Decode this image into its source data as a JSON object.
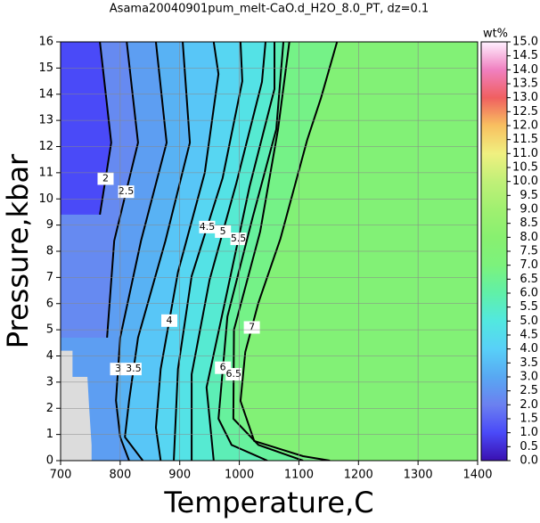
{
  "chart_data": {
    "type": "contour",
    "title": "Asama20040901pum_melt-CaO.d_H2O_8.0_PT, dz=0.1",
    "x_label": "Temperature,C",
    "y_label": "Pressure,kbar",
    "xlim": [
      700,
      1400
    ],
    "ylim": [
      0,
      16
    ],
    "xticks": [
      700,
      800,
      900,
      1000,
      1100,
      1200,
      1300,
      1400
    ],
    "yticks": [
      0,
      1,
      2,
      3,
      4,
      5,
      6,
      7,
      8,
      9,
      10,
      11,
      12,
      13,
      14,
      15,
      16
    ],
    "grid": true,
    "colorbar": {
      "label": "wt%",
      "lim": [
        0,
        15
      ],
      "colors": [
        "#3a10b0",
        "#4a4af8",
        "#6b80f0",
        "#58a8f2",
        "#58d0f8",
        "#52e8e0",
        "#60f0a8",
        "#7cf27c",
        "#88f070",
        "#a0f070",
        "#c0f078",
        "#f0f080",
        "#f8c060",
        "#f06060",
        "#f080c0",
        "#fff0ff"
      ],
      "ticks": [
        {
          "value": 0,
          "label": "0.0"
        },
        {
          "value": 0.5,
          "label": "0.5"
        },
        {
          "value": 1,
          "label": "1.0"
        },
        {
          "value": 1.5,
          "label": "1.5"
        },
        {
          "value": 2,
          "label": "2.0"
        },
        {
          "value": 2.5,
          "label": "2.5"
        },
        {
          "value": 3,
          "label": "3.0"
        },
        {
          "value": 3.5,
          "label": "3.5"
        },
        {
          "value": 4,
          "label": "4.0"
        },
        {
          "value": 4.5,
          "label": "4.5"
        },
        {
          "value": 5,
          "label": "5.0"
        },
        {
          "value": 5.5,
          "label": "5.5"
        },
        {
          "value": 6,
          "label": "6.0"
        },
        {
          "value": 6.5,
          "label": "6.5"
        },
        {
          "value": 7,
          "label": "7.0"
        },
        {
          "value": 7.5,
          "label": "7.5"
        },
        {
          "value": 8,
          "label": "8.0"
        },
        {
          "value": 8.5,
          "label": "8.5"
        },
        {
          "value": 9,
          "label": "9.0"
        },
        {
          "value": 9.5,
          "label": "9.5"
        },
        {
          "value": 10,
          "label": "10.0"
        },
        {
          "value": 10.5,
          "label": "10.5"
        },
        {
          "value": 11,
          "label": "11.0"
        },
        {
          "value": 11.5,
          "label": "11.5"
        },
        {
          "value": 12,
          "label": "12.0"
        },
        {
          "value": 12.5,
          "label": "12.5"
        },
        {
          "value": 13,
          "label": "13.0"
        },
        {
          "value": 13.5,
          "label": "13.5"
        },
        {
          "value": 14,
          "label": "14.0"
        },
        {
          "value": 14.5,
          "label": "14.5"
        },
        {
          "value": 15,
          "label": "15.0"
        }
      ]
    },
    "background_level": 7.5,
    "contours": [
      {
        "level": 2,
        "x": [
          766,
          785,
          766
        ],
        "y": [
          16,
          12.15,
          9.4
        ]
      },
      {
        "level": 2.5,
        "x": [
          811,
          830,
          790,
          778
        ],
        "y": [
          16,
          12.15,
          8.4,
          4.7
        ]
      },
      {
        "level": 3,
        "x": [
          860,
          878,
          835,
          800,
          793,
          800,
          815
        ],
        "y": [
          16,
          12.15,
          8.4,
          4.7,
          2.3,
          0.9,
          0
        ]
      },
      {
        "level": 3.5,
        "x": [
          905,
          917,
          876,
          830,
          815,
          808,
          838
        ],
        "y": [
          16,
          12.15,
          8.4,
          4.7,
          2.3,
          0.9,
          0
        ]
      },
      {
        "level": 4,
        "x": [
          957,
          965,
          942,
          897,
          868,
          860,
          868
        ],
        "y": [
          16,
          14.77,
          11,
          7.2,
          3.5,
          1.26,
          0
        ]
      },
      {
        "level": 4.5,
        "x": [
          1002,
          1005,
          972,
          920,
          897,
          890
        ],
        "y": [
          16,
          14.5,
          10.8,
          7.05,
          3.5,
          0
        ]
      },
      {
        "level": 5,
        "x": [
          1044,
          1038,
          995,
          950,
          920,
          920
        ],
        "y": [
          16,
          14.47,
          10.6,
          6.9,
          3.3,
          0
        ]
      },
      {
        "level": 5.5,
        "x": [
          1059,
          1059,
          1017,
          980,
          945,
          957
        ],
        "y": [
          16,
          14.2,
          10.45,
          6.5,
          2.8,
          0
        ]
      },
      {
        "level": 6,
        "x": [
          1074,
          1062,
          1022,
          980,
          965,
          987,
          1047
        ],
        "y": [
          16,
          12.66,
          9.26,
          5.5,
          1.6,
          0.6,
          0
        ]
      },
      {
        "level": 6.5,
        "x": [
          1084,
          1065,
          1035,
          991,
          990,
          1032,
          1107
        ],
        "y": [
          16,
          12.66,
          8.75,
          5.0,
          1.6,
          0.6,
          0
        ]
      },
      {
        "level": 7,
        "x": [
          1164,
          1137,
          1114,
          1069,
          1032,
          1010,
          1002,
          1025,
          1107,
          1152
        ],
        "y": [
          16,
          13.85,
          12.26,
          8.48,
          6.03,
          4.15,
          2.28,
          0.75,
          0.17,
          0
        ]
      }
    ]
  }
}
